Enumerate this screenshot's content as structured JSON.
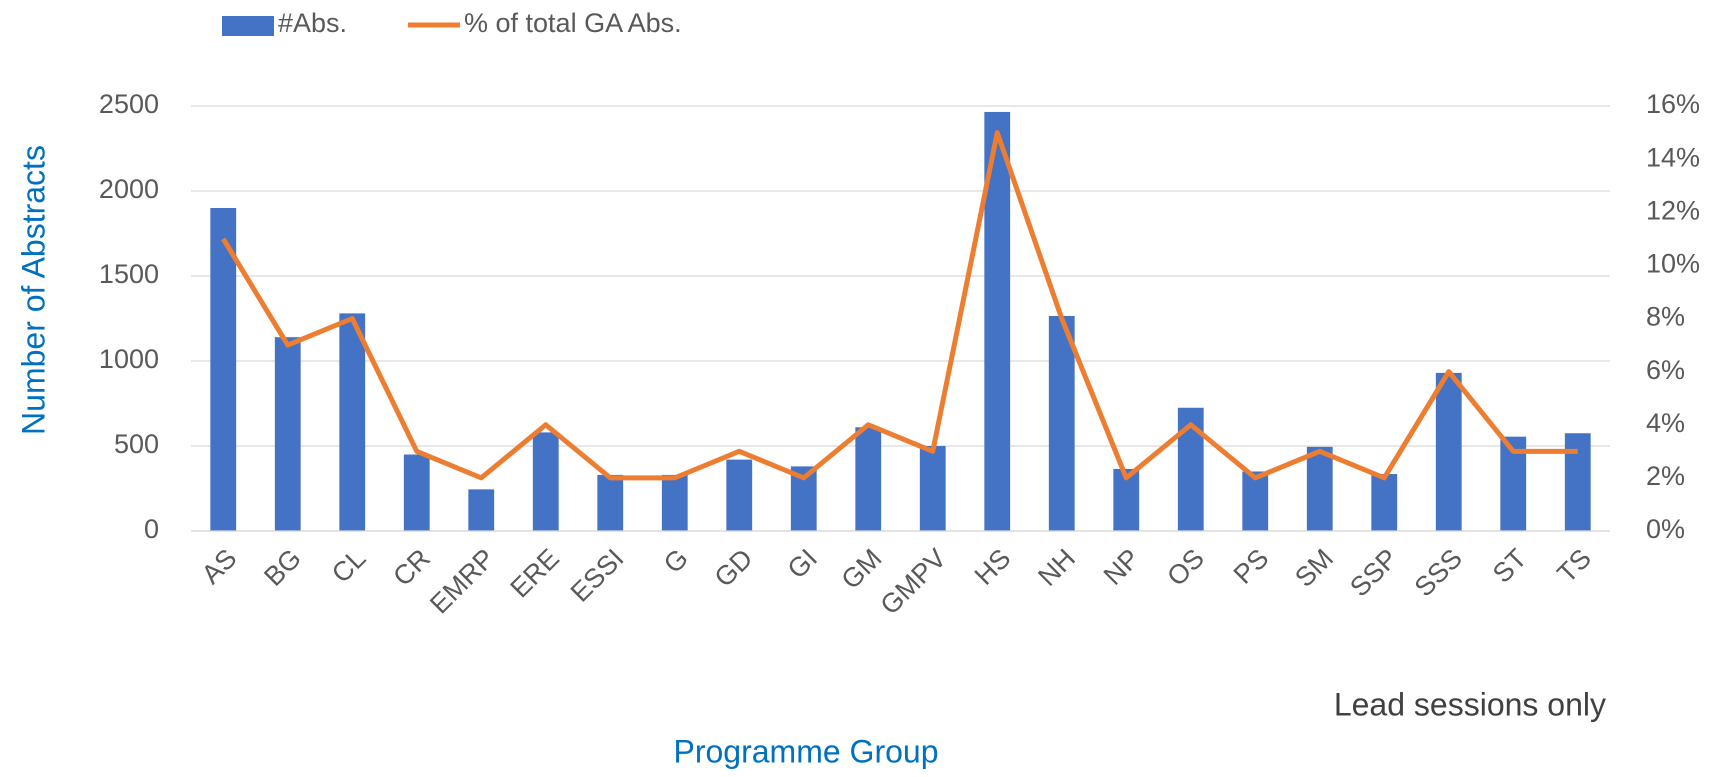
{
  "chart_data": {
    "type": "bar-line",
    "categories": [
      "AS",
      "BG",
      "CL",
      "CR",
      "EMRP",
      "ERE",
      "ESSI",
      "G",
      "GD",
      "GI",
      "GM",
      "GMPV",
      "HS",
      "NH",
      "NP",
      "OS",
      "PS",
      "SM",
      "SSP",
      "SSS",
      "ST",
      "TS"
    ],
    "series": [
      {
        "name": "#Abs.",
        "type": "bar",
        "color": "#4472c4",
        "values": [
          1900,
          1140,
          1280,
          450,
          245,
          580,
          330,
          330,
          420,
          380,
          610,
          500,
          2465,
          1265,
          365,
          725,
          350,
          495,
          335,
          930,
          555,
          575
        ]
      },
      {
        "name": "% of total GA Abs.",
        "type": "line",
        "axis": "y2",
        "color": "#ed7d31",
        "values": [
          11,
          7,
          8,
          3,
          2,
          4,
          2,
          2,
          3,
          2,
          4,
          3,
          15,
          8,
          2,
          4,
          2,
          3,
          2,
          6,
          3,
          3
        ]
      }
    ],
    "ylabel": "Number of Abstracts",
    "xlabel": "Programme Group",
    "annotation": "Lead sessions only",
    "ylim": [
      0,
      2500
    ],
    "yticks": [
      0,
      500,
      1000,
      1500,
      2000,
      2500
    ],
    "y2lim": [
      0,
      16
    ],
    "y2ticks": [
      {
        "value": 0,
        "label": "0%"
      },
      {
        "value": 2,
        "label": "2%"
      },
      {
        "value": 4,
        "label": "4%"
      },
      {
        "value": 6,
        "label": "6%"
      },
      {
        "value": 8,
        "label": "8%"
      },
      {
        "value": 10,
        "label": "10%"
      },
      {
        "value": 12,
        "label": "12%"
      },
      {
        "value": 14,
        "label": "14%"
      },
      {
        "value": 16,
        "label": "16%"
      }
    ],
    "grid": true,
    "legend": "top"
  }
}
